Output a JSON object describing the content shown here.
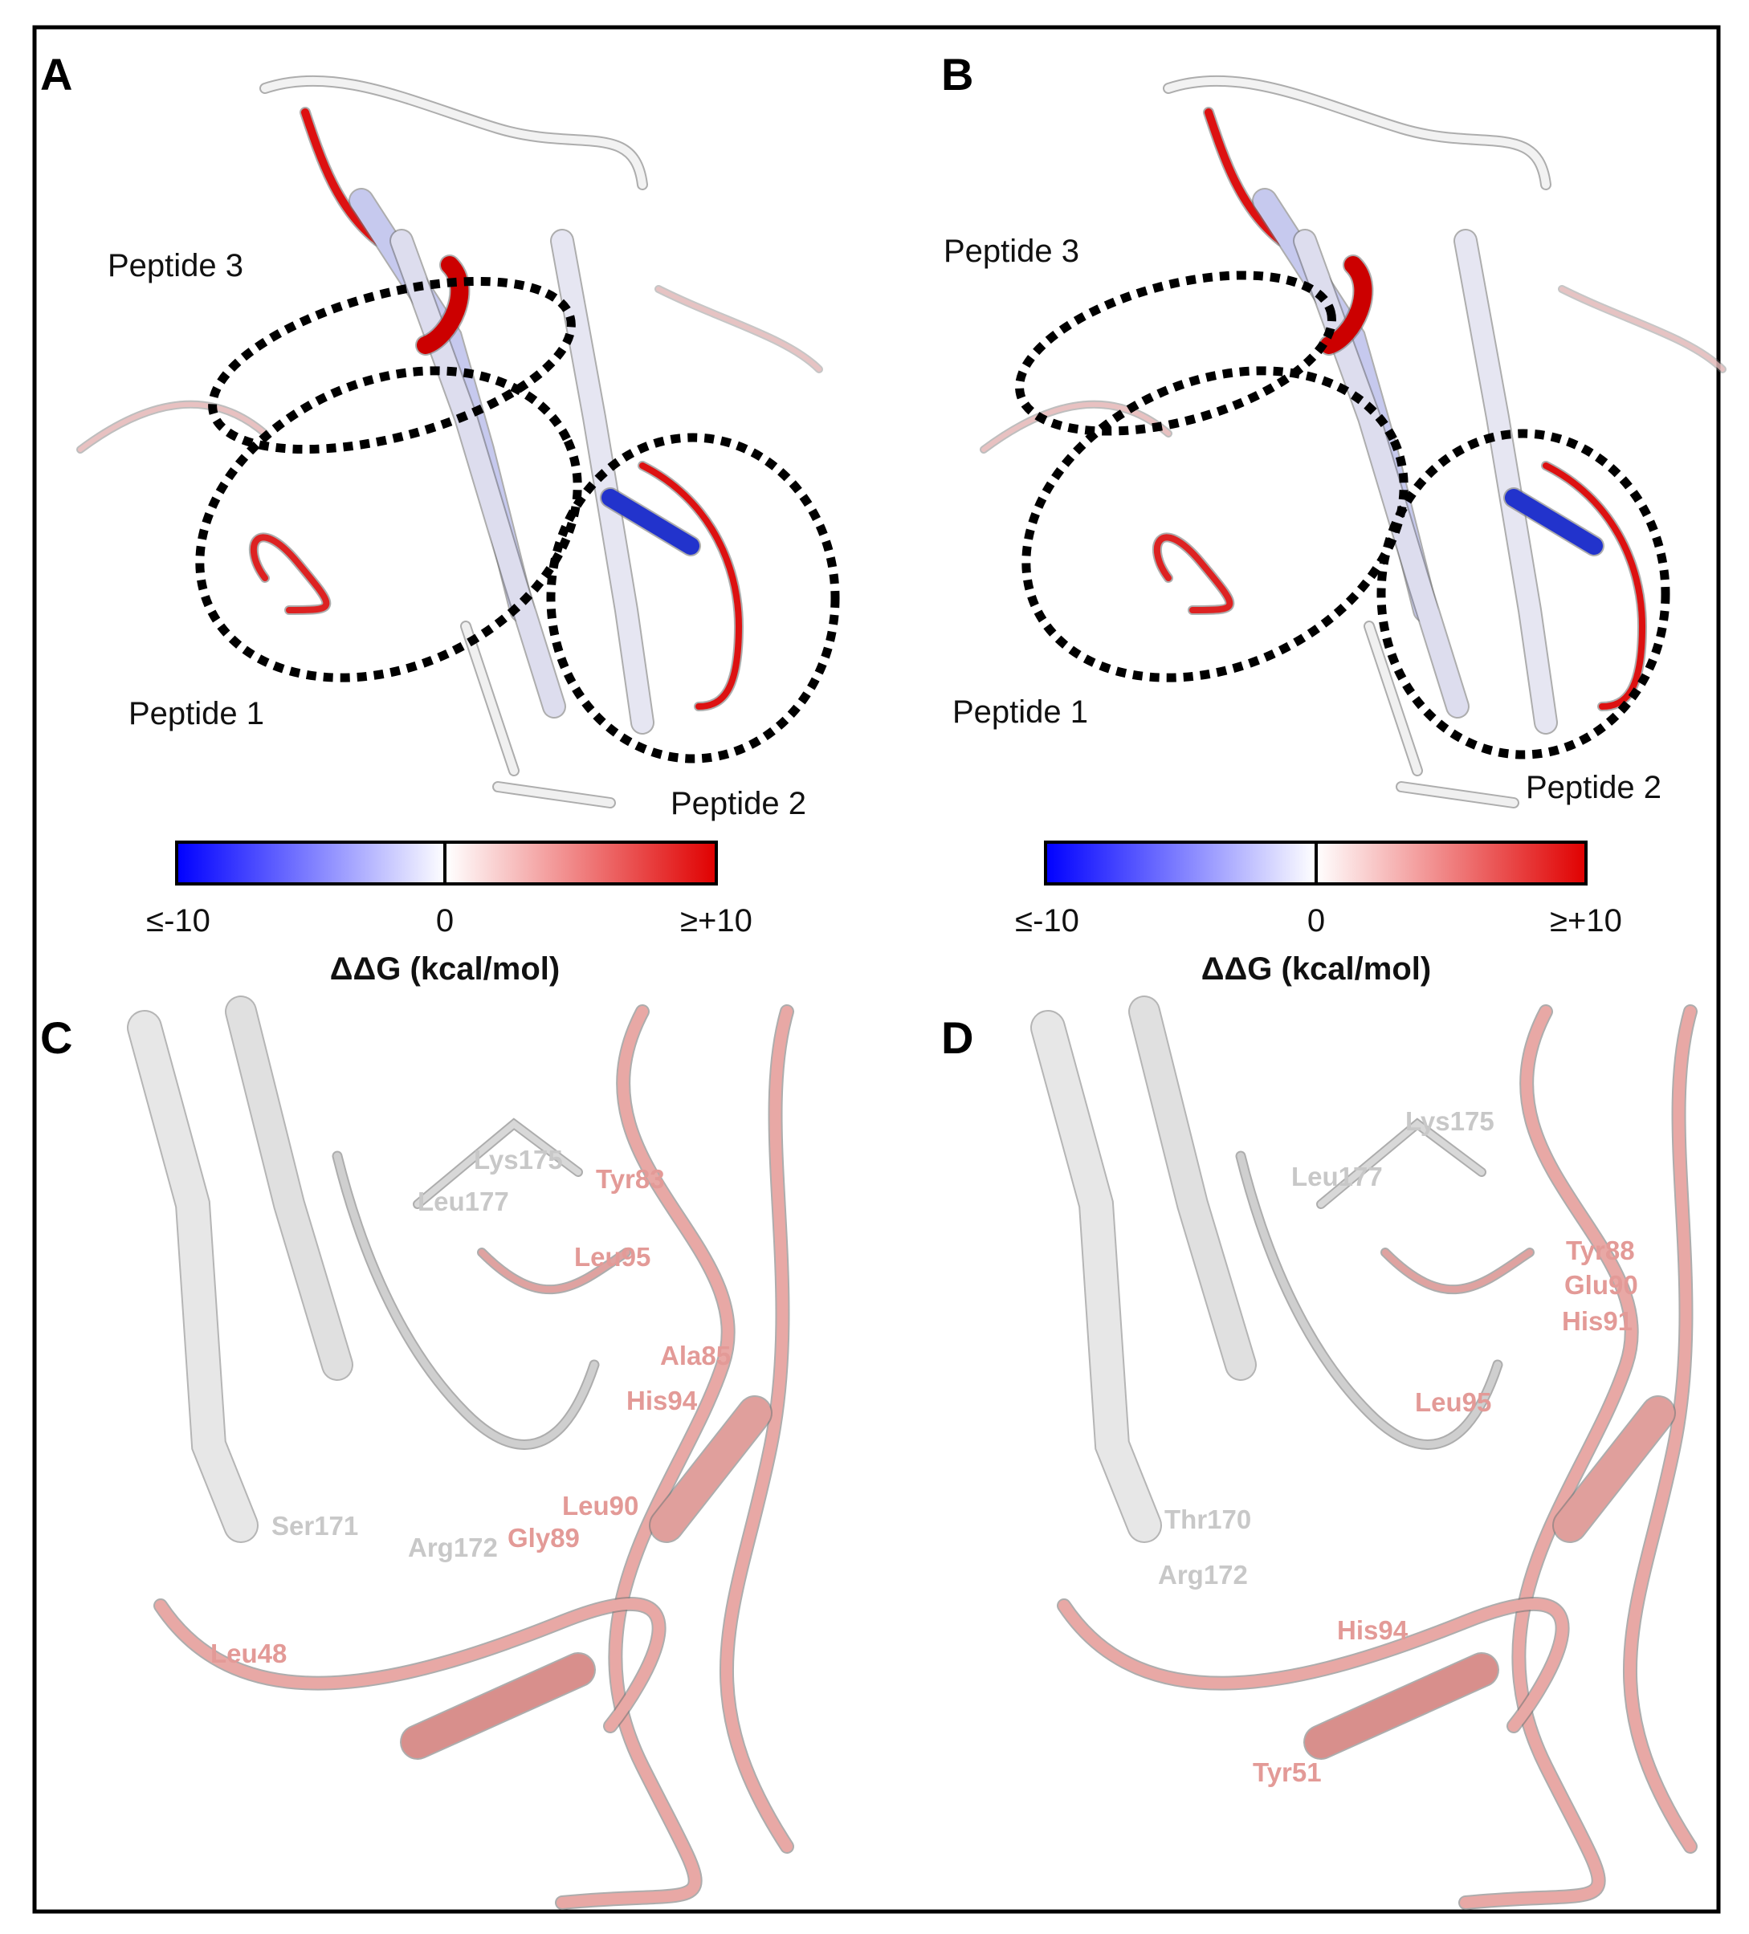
{
  "panels": [
    {
      "label": "A",
      "annotations": [
        "Peptide 3",
        "Peptide 1",
        "Peptide 2"
      ],
      "colorbar": {
        "ticks": [
          "≤-10",
          "0",
          "≥+10"
        ],
        "title": "ΔΔG (kcal/mol)"
      }
    },
    {
      "label": "B",
      "annotations": [
        "Peptide 3",
        "Peptide 1",
        "Peptide 2"
      ],
      "colorbar": {
        "ticks": [
          "≤-10",
          "0",
          "≥+10"
        ],
        "title": "ΔΔG (kcal/mol)"
      }
    },
    {
      "label": "C",
      "residues": [
        "Lys175",
        "Leu177",
        "Tyr83",
        "Leu95",
        "Ala85",
        "His94",
        "Leu90",
        "Gly89",
        "Ser171",
        "Arg172",
        "Leu48"
      ]
    },
    {
      "label": "D",
      "residues": [
        "Lys175",
        "Leu177",
        "Tyr88",
        "Glu90",
        "His91",
        "Leu95",
        "Thr170",
        "Arg172",
        "His94",
        "Tyr51"
      ]
    }
  ]
}
